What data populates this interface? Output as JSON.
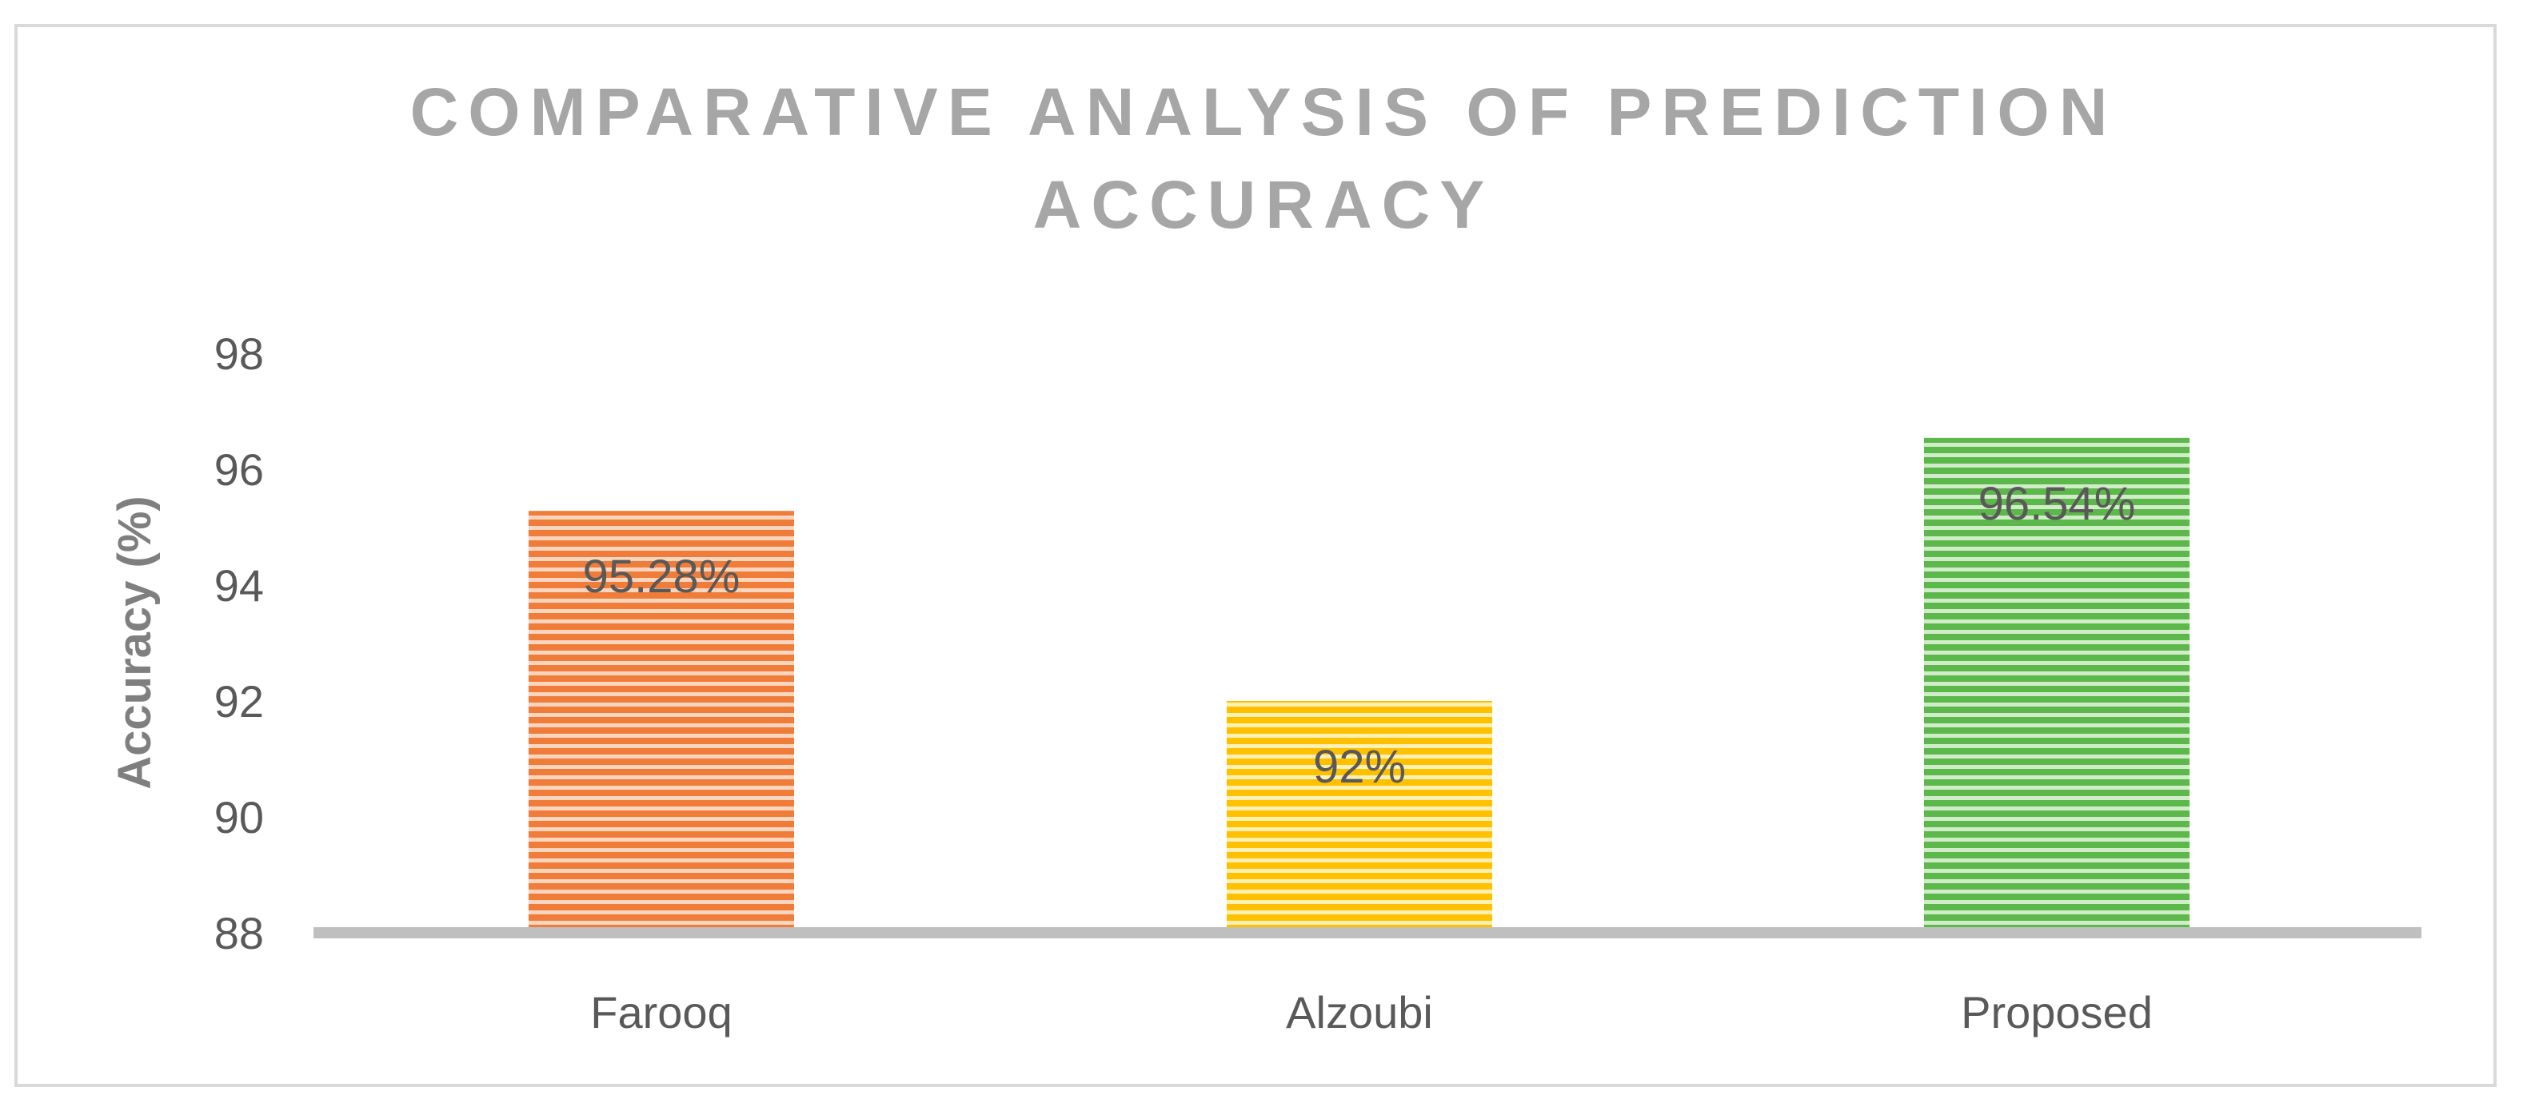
{
  "chart_data": {
    "type": "bar",
    "title_lines": [
      "COMPARATIVE ANALYSIS OF PREDICTION",
      "ACCURACY"
    ],
    "xlabel": "",
    "ylabel": "Accuracy (%)",
    "categories": [
      "Farooq",
      "Alzoubi",
      "Proposed"
    ],
    "values": [
      95.28,
      92,
      96.54
    ],
    "data_labels": [
      "95.28%",
      "92%",
      "96.54%"
    ],
    "colors": [
      "#f07c3a",
      "#ffc000",
      "#5cb84a"
    ],
    "ylim": [
      88,
      98
    ],
    "yticks": [
      "88",
      "90",
      "92",
      "94",
      "96",
      "98"
    ],
    "grid": false,
    "pattern": "horizontal-stripes"
  }
}
